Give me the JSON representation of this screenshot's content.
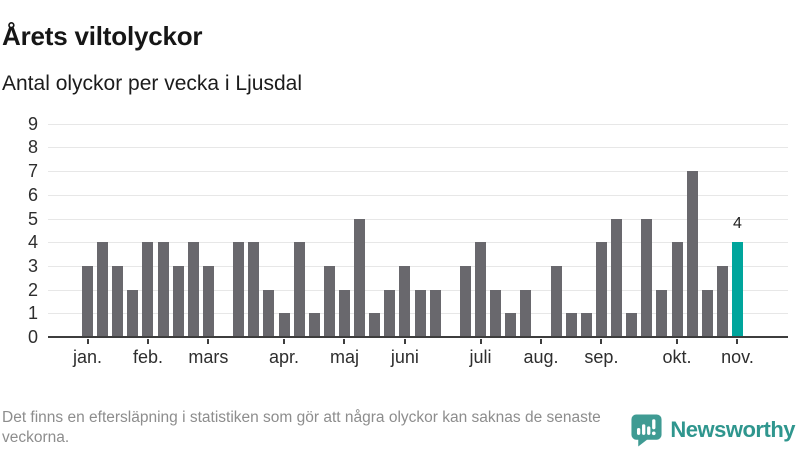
{
  "chart_data": {
    "type": "bar",
    "title": "Årets viltolyckor",
    "subtitle": "Antal olyckor per vecka i Ljusdal",
    "x_unit": "vecka",
    "values": [
      3,
      4,
      3,
      2,
      4,
      4,
      3,
      4,
      3,
      0,
      4,
      4,
      2,
      1,
      4,
      1,
      3,
      2,
      5,
      1,
      2,
      3,
      2,
      2,
      0,
      3,
      4,
      2,
      1,
      2,
      0,
      3,
      1,
      1,
      4,
      5,
      1,
      5,
      2,
      4,
      7,
      2,
      3,
      4
    ],
    "highlight_index": 43,
    "highlight_value_label": "4",
    "month_ticks": [
      {
        "index": 0,
        "label": "jan."
      },
      {
        "index": 4,
        "label": "feb."
      },
      {
        "index": 8,
        "label": "mars"
      },
      {
        "index": 13,
        "label": "apr."
      },
      {
        "index": 17,
        "label": "maj"
      },
      {
        "index": 21,
        "label": "juni"
      },
      {
        "index": 26,
        "label": "juli"
      },
      {
        "index": 30,
        "label": "aug."
      },
      {
        "index": 34,
        "label": "sep."
      },
      {
        "index": 39,
        "label": "okt."
      },
      {
        "index": 43,
        "label": "nov."
      }
    ],
    "y_ticks": [
      0,
      1,
      2,
      3,
      4,
      5,
      6,
      7,
      8,
      9
    ],
    "ylim": [
      0,
      9
    ],
    "grid": true,
    "legend": "none",
    "colors": {
      "bar": "#69686d",
      "highlight": "#00a59c",
      "gridline": "#e7e7e7",
      "axis": "#3d3d3d"
    }
  },
  "footer": {
    "note": "Det finns en eftersläpning i statistiken som gör att några olyckor kan saknas de senaste veckorna.",
    "brand": "Newsworthy",
    "brand_color": "#2f968e"
  }
}
